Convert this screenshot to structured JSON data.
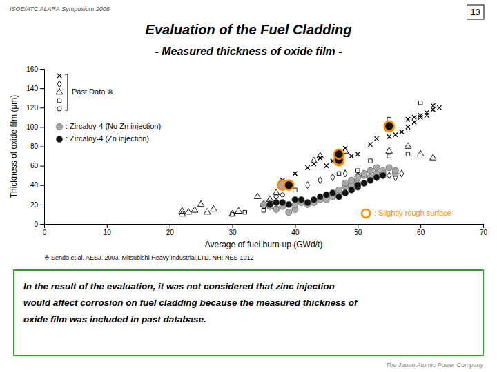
{
  "chart_data": {
    "type": "scatter",
    "title": "Evaluation of the Fuel Cladding",
    "subtitle": "- Measured thickness of oxide film -",
    "xlabel": "Average of fuel burn-up (GWd/t)",
    "ylabel": "Thickness of oxide film (μm)",
    "annotations": [
      "ISOE/ATC ALARA  Symposium 2006",
      "13",
      "Past Data ※",
      ": Slightly rough surface",
      "※  Sendo et al. AESJ, 2003,  Mitsubishi Heavy Industrial,LTD, NHI-NES-1012",
      "In the result of the evaluation, it was not considered that zinc injection\nwould affect corrosion on fuel cladding because the measured thickness of\noxide film was included in past database.",
      "The Japan Atomic Power Company"
    ],
    "xlim": [
      0,
      70
    ],
    "ylim": [
      0,
      160
    ],
    "xticks": [
      0,
      10,
      20,
      30,
      40,
      50,
      60,
      70
    ],
    "yticks": [
      0,
      20,
      40,
      60,
      80,
      100,
      120,
      140,
      160
    ],
    "grid": false,
    "legend": "upper left",
    "color": "#FF8C00",
    "series": [
      {
        "marker": "triangle-open",
        "color": "#000000",
        "x": [
          22,
          23,
          24,
          25,
          22,
          26,
          27,
          30,
          31,
          34,
          35,
          36,
          37,
          43,
          44,
          47,
          48,
          55,
          58,
          60,
          62
        ],
        "values": [
          13,
          12,
          14,
          20,
          10,
          12,
          15,
          10,
          13,
          28,
          20,
          25,
          32,
          65,
          70,
          70,
          75,
          75,
          80,
          72,
          68
        ]
      },
      {
        "marker": "square-open",
        "color": "#000000",
        "x": [
          30,
          32,
          35,
          37,
          38,
          40,
          47,
          50,
          52,
          55,
          58,
          60,
          55
        ],
        "values": [
          10,
          12,
          14,
          16,
          40,
          35,
          52,
          55,
          65,
          70,
          72,
          125,
          108
        ]
      },
      {
        "marker": "diamond-open",
        "color": "#000000",
        "x": [
          42,
          44,
          46,
          48,
          50,
          52,
          53,
          54,
          55,
          56,
          57
        ],
        "values": [
          40,
          45,
          48,
          52,
          50,
          55,
          48,
          50,
          50,
          48,
          52
        ]
      },
      {
        "marker": "circle-open",
        "color": "#000000",
        "x": [
          35,
          36,
          37,
          38
        ],
        "values": [
          18,
          22,
          28,
          30
        ]
      },
      {
        "marker": "x",
        "color": "#000000",
        "x": [
          38,
          40,
          42,
          43,
          44,
          45,
          46,
          47,
          48,
          49,
          50,
          52,
          53,
          55,
          56,
          57,
          58,
          59,
          60,
          61,
          62,
          58,
          59,
          60,
          61,
          62,
          63
        ],
        "values": [
          45,
          52,
          58,
          62,
          68,
          60,
          65,
          75,
          78,
          70,
          72,
          82,
          88,
          90,
          92,
          95,
          100,
          105,
          110,
          112,
          122,
          108,
          110,
          112,
          115,
          118,
          120
        ]
      },
      {
        "name": ": Zircaloy-4 (No Zn injection)",
        "marker": "circle",
        "color": "#aaaaaa",
        "x": [
          35,
          36,
          37,
          38,
          39,
          40,
          40,
          41,
          42,
          43,
          44,
          45,
          46,
          47,
          47,
          48,
          48,
          49,
          49,
          50,
          50,
          51,
          51,
          52,
          52,
          53,
          53,
          54,
          54,
          55,
          56,
          56
        ],
        "values": [
          20,
          18,
          15,
          18,
          12,
          15,
          20,
          22,
          20,
          22,
          25,
          25,
          28,
          30,
          35,
          38,
          42,
          40,
          45,
          42,
          48,
          50,
          52,
          48,
          55,
          52,
          58,
          52,
          55,
          58,
          52,
          55
        ]
      },
      {
        "name": ": Zircaloy-4 (Zn injection)",
        "marker": "circle",
        "color": "#111111",
        "x": [
          36,
          37,
          38,
          39,
          40,
          41,
          42,
          43,
          44,
          45,
          46,
          47,
          48,
          49,
          50,
          50,
          51,
          52,
          53,
          54
        ],
        "values": [
          20,
          22,
          22,
          20,
          25,
          25,
          22,
          25,
          28,
          30,
          32,
          28,
          32,
          35,
          38,
          40,
          42,
          45,
          48,
          50
        ]
      },
      {
        "marker": "ringed-circle",
        "color": "#aaaaaa",
        "x": [
          38,
          47,
          47,
          55
        ],
        "values": [
          40,
          65,
          71,
          100
        ]
      },
      {
        "marker": "ringed-circle",
        "color": "#111111",
        "x": [
          39,
          47,
          47,
          55
        ],
        "values": [
          40,
          66,
          72,
          101
        ]
      }
    ]
  }
}
